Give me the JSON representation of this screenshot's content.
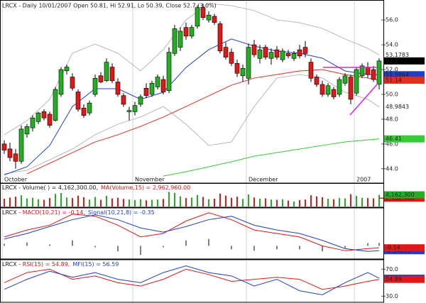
{
  "chart_data": [
    {
      "type": "candlestick",
      "title": "LRCX - Daily 10/01/2007 Open 50.81, Hi 52.91, Lo 50.39, Close 52.7 (3.0%)",
      "categories": [
        "October",
        null,
        null,
        null,
        null,
        null,
        null,
        null,
        null,
        null,
        null,
        null,
        null,
        null,
        null,
        null,
        null,
        null,
        null,
        null,
        null,
        null,
        null,
        "November",
        null,
        null,
        null,
        null,
        null,
        null,
        null,
        null,
        null,
        null,
        null,
        null,
        null,
        null,
        null,
        null,
        null,
        null,
        null,
        "December",
        null,
        null,
        null,
        null,
        null,
        null,
        null,
        null,
        null,
        null,
        null,
        null,
        null,
        null,
        null,
        null,
        null,
        null,
        "2007",
        null,
        null,
        null,
        null
      ],
      "open": [
        46.0,
        45.6,
        45.2,
        44.6,
        46.8,
        47.3,
        47.8,
        48.6,
        48.4,
        47.9,
        50.0,
        51.9,
        51.4,
        50.2,
        48.9,
        48.5,
        50.0,
        51.5,
        51.1,
        52.2,
        51.0,
        49.9,
        48.6,
        48.6,
        49.2,
        50.5,
        50.0,
        50.6,
        51.2,
        50.3,
        53.3,
        53.8,
        55.4,
        54.7,
        55.5,
        57.0,
        56.0,
        56.3,
        55.7,
        53.8,
        53.4,
        52.5,
        51.5,
        51.3,
        54.0,
        52.9,
        53.8,
        52.9,
        53.6,
        52.8,
        53.3,
        52.9,
        53.6,
        53.8,
        52.6,
        51.4,
        50.8,
        50.0,
        50.4,
        50.0,
        50.9,
        51.4,
        50.1,
        51.5,
        52.2,
        52.0,
        50.81
      ],
      "high": [
        46.3,
        46.1,
        45.6,
        47.5,
        47.6,
        48.3,
        48.6,
        48.8,
        48.6,
        50.6,
        52.2,
        52.4,
        51.7,
        50.4,
        49.2,
        49.5,
        51.6,
        51.8,
        52.9,
        52.5,
        51.3,
        50.1,
        49.0,
        49.4,
        50.0,
        50.9,
        51.1,
        51.6,
        51.5,
        53.8,
        55.6,
        55.4,
        55.8,
        55.6,
        57.2,
        57.3,
        56.7,
        56.5,
        55.9,
        54.2,
        53.7,
        52.8,
        52.4,
        54.1,
        54.4,
        54.0,
        54.0,
        53.7,
        53.9,
        53.7,
        53.6,
        53.5,
        54.0,
        54.3,
        52.9,
        51.6,
        51.1,
        50.9,
        50.6,
        51.4,
        51.7,
        51.6,
        52.2,
        52.5,
        52.6,
        52.3,
        52.91
      ],
      "low": [
        45.2,
        44.6,
        44.0,
        44.4,
        46.5,
        47.0,
        47.6,
        47.9,
        47.3,
        47.8,
        49.8,
        51.6,
        50.3,
        48.6,
        48.1,
        48.3,
        49.8,
        50.9,
        51.0,
        50.9,
        49.8,
        49.0,
        47.9,
        48.3,
        49.0,
        49.7,
        49.8,
        50.4,
        50.0,
        50.1,
        53.1,
        53.5,
        54.4,
        54.5,
        55.3,
        56.0,
        55.8,
        55.6,
        53.3,
        52.8,
        52.3,
        51.4,
        51.0,
        50.8,
        53.0,
        52.5,
        52.8,
        52.4,
        52.8,
        52.6,
        52.9,
        52.7,
        52.9,
        53.0,
        51.0,
        50.6,
        49.8,
        49.8,
        49.6,
        49.8,
        50.7,
        49.2,
        49.9,
        51.3,
        51.3,
        51.0,
        50.39
      ],
      "close": [
        45.5,
        44.9,
        44.6,
        47.2,
        47.4,
        48.1,
        48.5,
        48.1,
        47.5,
        50.4,
        52.0,
        52.2,
        50.5,
        48.8,
        48.3,
        49.3,
        51.3,
        51.0,
        52.6,
        51.1,
        50.0,
        49.2,
        48.7,
        49.1,
        49.8,
        49.9,
        50.9,
        51.4,
        50.2,
        53.4,
        55.3,
        55.1,
        54.7,
        55.4,
        57.0,
        56.2,
        56.4,
        55.8,
        53.5,
        53.0,
        52.5,
        51.7,
        52.1,
        53.8,
        53.2,
        53.6,
        53.0,
        53.4,
        53.0,
        53.5,
        53.1,
        53.3,
        53.1,
        53.3,
        51.3,
        50.8,
        50.0,
        50.7,
        49.8,
        51.2,
        51.5,
        49.6,
        52.0,
        52.3,
        51.6,
        51.2,
        52.7
      ],
      "up_color": "#22b022",
      "down_color": "#e01818",
      "ylim": [
        43.3,
        57.5
      ],
      "yticks": [
        {
          "value": 56,
          "label": "56.0"
        },
        {
          "value": 54,
          "label": "54.0"
        },
        {
          "value": 52,
          "label": "52.0"
        },
        {
          "value": 50,
          "label": "50.0"
        },
        {
          "value": 48,
          "label": "48.0"
        },
        {
          "value": 46,
          "label": "46.0"
        },
        {
          "value": 44,
          "label": "44.0"
        }
      ],
      "overlays": [
        {
          "color": "#b8b8b8",
          "boxed": false,
          "x": [
            0,
            4,
            8,
            12,
            16,
            20,
            24,
            28,
            32,
            36,
            40,
            44,
            48,
            52,
            56,
            60,
            64,
            66
          ],
          "values": [
            46.74,
            47.88,
            49.6,
            53.32,
            54.06,
            53.32,
            51.89,
            53.61,
            56.01,
            57.33,
            57.16,
            56.76,
            56.01,
            55.78,
            55.32,
            54.47,
            53.72,
            53.1783
          ]
        },
        {
          "color": "#b8b8b8",
          "boxed": false,
          "x": [
            0,
            4,
            8,
            12,
            16,
            20,
            24,
            28,
            32,
            36,
            40,
            44,
            48,
            52,
            56,
            60,
            64,
            66
          ],
          "values": [
            43.59,
            43.87,
            44.73,
            45.59,
            46.74,
            47.59,
            48.17,
            49.02,
            47.59,
            45.88,
            46.16,
            49.02,
            51.32,
            51.6,
            51.32,
            50.17,
            49.6,
            48.9843
          ]
        },
        {
          "color": "#1f3fd0",
          "boxed": true,
          "x": [
            0,
            4,
            8,
            12,
            16,
            20,
            24,
            28,
            32,
            36,
            40,
            44,
            48,
            52,
            56,
            60,
            64,
            66
          ],
          "values": [
            43.5,
            44.16,
            45.88,
            49.02,
            50.46,
            50.46,
            49.6,
            50.17,
            52.17,
            53.61,
            54.47,
            53.89,
            53.49,
            53.32,
            52.92,
            51.89,
            51.6,
            51.5864
          ]
        },
        {
          "color": "#e03020",
          "boxed": true,
          "x": [
            4,
            8,
            12,
            16,
            20,
            24,
            28,
            32,
            36,
            40,
            44,
            48,
            52,
            56,
            60,
            64,
            66
          ],
          "values": [
            43.59,
            44.44,
            45.3,
            46.16,
            46.74,
            47.42,
            48.17,
            49.02,
            49.88,
            50.74,
            51.32,
            51.6,
            51.89,
            52.0,
            51.6,
            51.32,
            51.14
          ]
        },
        {
          "color": "#33cc33",
          "boxed": true,
          "x": [
            28,
            32,
            36,
            40,
            44,
            48,
            52,
            56,
            60,
            64,
            66
          ],
          "values": [
            43.41,
            43.76,
            44.16,
            44.56,
            45.02,
            45.3,
            45.59,
            45.88,
            46.16,
            46.33,
            46.41
          ]
        }
      ]
    },
    {
      "type": "bar",
      "title": "LRCX - Volume( ) = 4,162,300.00,",
      "values": [
        2800000,
        3200000,
        3500000,
        4000000,
        2900000,
        3100000,
        2600000,
        2400000,
        3000000,
        4500000,
        4800000,
        3200000,
        3000000,
        3900000,
        3300000,
        2500000,
        3400000,
        2400000,
        3800000,
        2900000,
        3100000,
        2700000,
        2500000,
        2300000,
        2600000,
        2200000,
        2400000,
        2500000,
        2700000,
        5200000,
        4900000,
        3600000,
        3000000,
        3200000,
        4100000,
        3400000,
        2600000,
        2800000,
        4600000,
        3900000,
        3100000,
        3500000,
        2700000,
        4300000,
        3200000,
        2800000,
        2900000,
        2500000,
        2400000,
        2600000,
        2100000,
        1800000,
        2300000,
        2500000,
        4000000,
        3600000,
        3300000,
        2800000,
        2600000,
        3000000,
        2900000,
        4400000,
        3800000,
        3100000,
        3000000,
        2900000,
        4162300
      ],
      "last_label": "4,162,300",
      "color": "#22b022",
      "ylim": [
        0,
        8100000
      ],
      "ma": {
        "name": "MA(Volume,15) = 2,962,960.00",
        "value": 2962960,
        "label": "2,962,960",
        "color": "#e01818"
      }
    },
    {
      "type": "line",
      "title": "LRCX - ",
      "ylim": [
        -0.9,
        2.7
      ],
      "series": [
        {
          "name": "MACD(10,21) = -0.14,",
          "color": "#e01818",
          "x": [
            0,
            4,
            8,
            12,
            16,
            20,
            24,
            28,
            32,
            36,
            40,
            44,
            48,
            52,
            56,
            60,
            64,
            66
          ],
          "values": [
            0.65,
            1.15,
            1.5,
            2.3,
            2.15,
            1.5,
            0.65,
            0.9,
            1.8,
            2.4,
            1.9,
            1.15,
            0.9,
            0.65,
            0.0,
            -0.35,
            -0.2,
            -0.14
          ]
        },
        {
          "name": "Signal(10,21,8) = -0.35",
          "color": "#1f3fd0",
          "x": [
            0,
            4,
            8,
            12,
            16,
            20,
            24,
            28,
            32,
            36,
            40,
            44,
            48,
            52,
            56,
            60,
            64,
            66
          ],
          "values": [
            0.5,
            0.9,
            1.4,
            1.9,
            2.25,
            1.9,
            1.3,
            1.0,
            1.4,
            1.9,
            2.15,
            1.5,
            1.15,
            0.9,
            0.4,
            -0.2,
            -0.4,
            -0.34895
          ]
        }
      ],
      "histogram": {
        "color": "#000000",
        "x": [
          0,
          4,
          8,
          12,
          16,
          20,
          24,
          28,
          32,
          36,
          40,
          44,
          48,
          52,
          56,
          60,
          64,
          66
        ],
        "values": [
          0.15,
          0.25,
          0.1,
          0.4,
          -0.1,
          -0.4,
          -0.65,
          -0.1,
          0.4,
          0.5,
          -0.25,
          -0.35,
          -0.25,
          -0.25,
          -0.4,
          -0.15,
          0.2,
          0.21
        ]
      }
    },
    {
      "type": "line",
      "title": "LRCX - ",
      "ylim": [
        23,
        83
      ],
      "yticks": [
        {
          "value": 70,
          "label": "70.0"
        },
        {
          "value": 30,
          "label": "30.0"
        }
      ],
      "series": [
        {
          "name": "RSI(15) = 54.89,",
          "color": "#e01818",
          "x": [
            0,
            4,
            8,
            12,
            16,
            20,
            24,
            28,
            32,
            36,
            40,
            44,
            48,
            52,
            56,
            60,
            64,
            66
          ],
          "values": [
            50,
            65,
            70,
            55,
            60,
            50,
            45,
            55,
            70,
            62,
            52,
            55,
            58,
            55,
            40,
            45,
            52,
            54.89
          ]
        },
        {
          "name": "MFI(15) = 56.59",
          "color": "#1f3fd0",
          "x": [
            0,
            4,
            8,
            12,
            16,
            20,
            24,
            28,
            32,
            36,
            40,
            44,
            48,
            52,
            56,
            60,
            64,
            66
          ],
          "values": [
            40,
            55,
            67,
            58,
            65,
            55,
            50,
            65,
            75,
            65,
            60,
            45,
            55,
            38,
            32,
            50,
            65,
            56.5891
          ]
        }
      ]
    }
  ]
}
